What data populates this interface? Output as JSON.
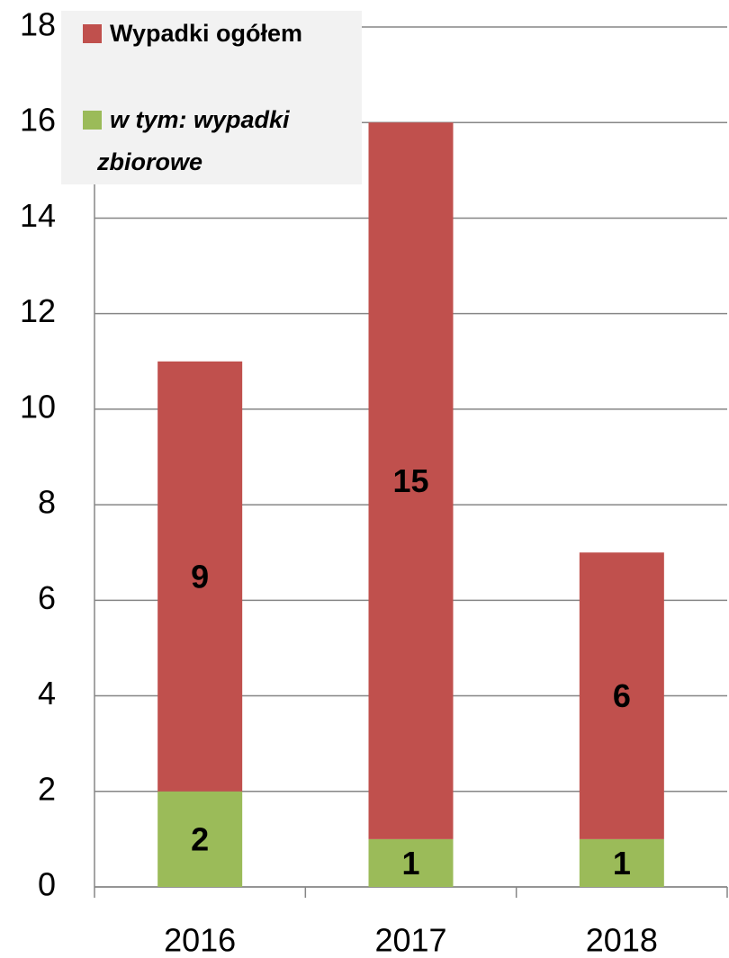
{
  "chart_data": {
    "type": "stacked_bar",
    "categories": [
      "2016",
      "2017",
      "2018"
    ],
    "series": [
      {
        "name": "w tym: wypadki zbiorowe",
        "color": "#9bbb59",
        "values": [
          2,
          1,
          1
        ]
      },
      {
        "name": "Wypadki ogółem",
        "color": "#c0504d",
        "values": [
          9,
          15,
          6
        ]
      }
    ],
    "ylim": [
      0,
      18
    ],
    "yticks": [
      0,
      2,
      4,
      6,
      8,
      10,
      12,
      14,
      16,
      18
    ],
    "grid": true,
    "legend": "top-left"
  }
}
